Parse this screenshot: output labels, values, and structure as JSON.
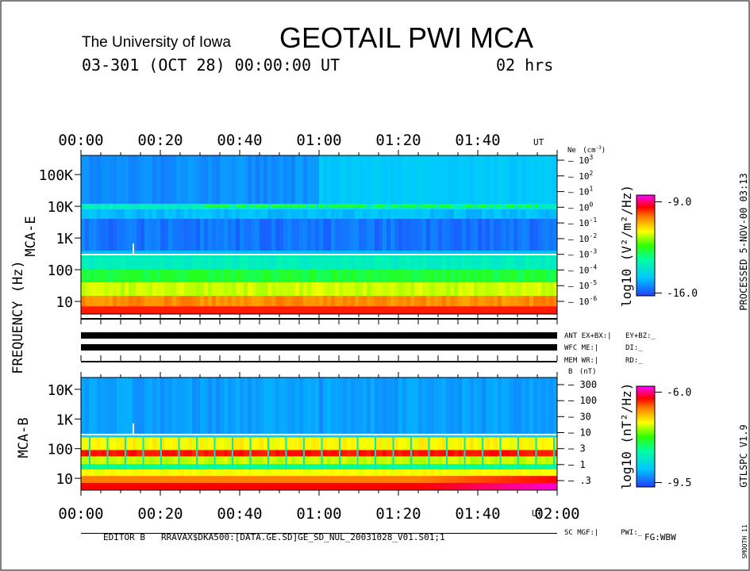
{
  "header": {
    "institution": "The University of Iowa",
    "instrument": "GEOTAIL  PWI  MCA",
    "date_line": "03-301 (OCT 28) 00:00:00 UT",
    "duration": "02 hrs"
  },
  "chart_data": [
    {
      "type": "heatmap",
      "title": "MCA-E",
      "xlabel": "UT",
      "ylabel": "FREQUENCY (Hz)",
      "x_ticks": [
        "00:00",
        "00:20",
        "00:40",
        "01:00",
        "01:20",
        "01:40"
      ],
      "x_unit_label": "UT",
      "y_ticks": [
        "100K",
        "10K",
        "1K",
        "100",
        "10"
      ],
      "y_scale": "log",
      "right_axis": {
        "label_base": "Ne",
        "label_unit": "(cm",
        "label_exp": "-3",
        "ticks": [
          {
            "base": "10",
            "exp": "3"
          },
          {
            "base": "10",
            "exp": "2"
          },
          {
            "base": "10",
            "exp": "1"
          },
          {
            "base": "10",
            "exp": "0"
          },
          {
            "base": "10",
            "exp": "-1"
          },
          {
            "base": "10",
            "exp": "-2"
          },
          {
            "base": "10",
            "exp": "-3"
          },
          {
            "base": "10",
            "exp": "-4"
          },
          {
            "base": "10",
            "exp": "-5"
          },
          {
            "base": "10",
            "exp": "-6"
          }
        ]
      },
      "colorbar": {
        "label": "log10 (V²/m²/Hz)",
        "max": "-9.0",
        "min": "-16.0",
        "vmax": -9.0,
        "vmin": -16.0
      },
      "features": {
        "background_level_hz": 300,
        "spike_time_min": 13,
        "plasma_line_hz": 10000,
        "density_drop_time_min": 60
      }
    },
    {
      "type": "heatmap",
      "title": "MCA-B",
      "xlabel": "UT",
      "ylabel": "FREQUENCY (Hz)",
      "x_ticks": [
        "00:00",
        "00:20",
        "00:40",
        "01:00",
        "01:20",
        "01:40",
        "02:00"
      ],
      "x_unit_label": "UT",
      "y_ticks": [
        "10K",
        "1K",
        "100",
        "10"
      ],
      "y_scale": "log",
      "right_axis": {
        "label_base": "B",
        "label_unit": "(nT)",
        "ticks": [
          "300",
          "100",
          "30",
          "10",
          "3",
          "1",
          ".3"
        ]
      },
      "colorbar": {
        "label": "log10 (nT²/Hz)",
        "max": "-6.0",
        "min": "-9.5",
        "vmax": -6.0,
        "vmin": -9.5
      },
      "features": {
        "background_level_hz": 300,
        "spike_time_min": 13,
        "pulse_period_min": 4.5
      }
    }
  ],
  "status_panel": {
    "rows": [
      {
        "left": "ANT EX+BX:|",
        "right": "EY+BZ:_"
      },
      {
        "left": "WFC ME:|",
        "right": "DI:_"
      },
      {
        "left": "MEM WR:|",
        "right": "RD:_"
      }
    ],
    "sc_row": {
      "left": "SC MGF:|",
      "right": "PWI:_"
    }
  },
  "frequency_axis_label": "FREQUENCY (Hz)",
  "side_labels": {
    "processed": "PROCESSED  5-NOV-00  03:13",
    "version": "GTLSPC  V1.9",
    "smooth": "SMOOTH 11"
  },
  "footer": {
    "editor": "EDITOR B",
    "path": "RRAVAX$DKA500:[DATA.GE.SD]GE_SD_NUL_20031028_V01.S01;1",
    "fg": "FG:WBW"
  }
}
